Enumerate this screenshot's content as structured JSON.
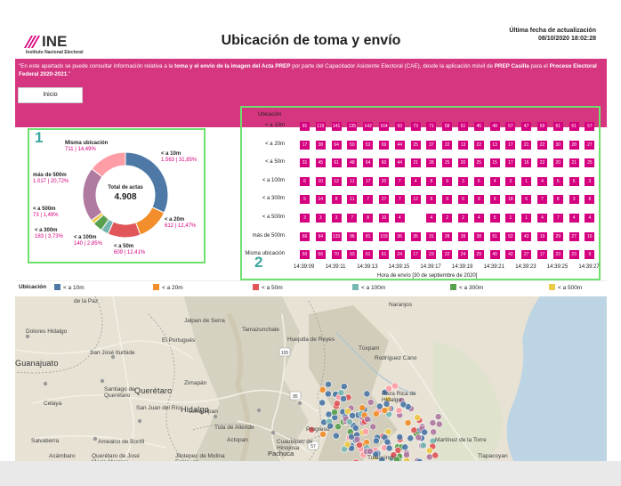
{
  "header": {
    "logo_text": "INE",
    "logo_sub": "Instituto Nacional Electoral",
    "title": "Ubicación de toma y envío",
    "update_label": "Última fecha de actualización",
    "update_value": "08/10/2020 18:02:28",
    "brand_color": "#d5007f"
  },
  "intro": {
    "p1": "\"En este apartado se puede consultar información relativa a la ",
    "b1": "toma y el envío de la imagen del Acta PREP",
    "p2": " por parte del Capacitador Asistente Electoral (CAE), desde la aplicación móvil de ",
    "b2": "PREP Casilla",
    "p3": " para el ",
    "b3": "Proceso Electoral Federal 2020-2021",
    "p4": ".\""
  },
  "nav": {
    "inicio": "Inicio"
  },
  "panel_numbers": {
    "one": "1",
    "two": "2"
  },
  "chart_data": [
    {
      "type": "pie",
      "center_title": "Total de actas",
      "center_value": "4.908",
      "slices": [
        {
          "name": "< a 10m",
          "value": 1563,
          "pct": "31,85%",
          "label": "1.563 | 31,85%",
          "color": "#4e79a7"
        },
        {
          "name": "< a 20m",
          "value": 612,
          "pct": "12,47%",
          "label": "612 | 12,47%",
          "color": "#f28e2b"
        },
        {
          "name": "< a 50m",
          "value": 609,
          "pct": "12,41%",
          "label": "609 | 12,41%",
          "color": "#e15759"
        },
        {
          "name": "< a 100m",
          "value": 140,
          "pct": "2,85%",
          "label": "140 | 2,85%",
          "color": "#76b7b2"
        },
        {
          "name": "< a 300m",
          "value": 183,
          "pct": "3,73%",
          "label": "183 | 3,73%",
          "color": "#59a14f"
        },
        {
          "name": "< a 500m",
          "value": 73,
          "pct": "1,49%",
          "label": "73 | 1,49%",
          "color": "#edc948"
        },
        {
          "name": "más de 500m",
          "value": 1017,
          "pct": "20,72%",
          "label": "1.017 | 20,72%",
          "color": "#b07aa1"
        },
        {
          "name": "Misma ubicación",
          "value": 711,
          "pct": "14,49%",
          "label": "711 | 14,49%",
          "color": "#ff9da7"
        }
      ]
    },
    {
      "type": "heatmap",
      "title": "Ubicación",
      "xlabel": "Hora de envío [30 de septiembre de 2020]",
      "x_ticks": [
        "14:39:09",
        "14:39:11",
        "14:39:13",
        "14:39:15",
        "14:39:17",
        "14:39:19",
        "14:39:21",
        "14:39:23",
        "14:39:25",
        "14:39:27"
      ],
      "rows": [
        {
          "name": "< a 10m",
          "values": [
            91,
            119,
            141,
            135,
            142,
            164,
            93,
            73,
            71,
            58,
            51,
            45,
            48,
            57,
            47,
            59,
            61,
            61,
            57
          ]
        },
        {
          "name": "< a 20m",
          "values": [
            17,
            38,
            64,
            50,
            53,
            69,
            44,
            25,
            37,
            22,
            13,
            22,
            13,
            17,
            21,
            22,
            30,
            28,
            27
          ]
        },
        {
          "name": "< a 50m",
          "values": [
            31,
            45,
            61,
            48,
            64,
            60,
            44,
            21,
            28,
            25,
            20,
            25,
            15,
            17,
            16,
            22,
            20,
            21,
            25
          ]
        },
        {
          "name": "< a 100m",
          "values": [
            6,
            10,
            12,
            11,
            17,
            20,
            7,
            4,
            8,
            9,
            3,
            6,
            4,
            3,
            1,
            4,
            6,
            6,
            3
          ]
        },
        {
          "name": "< a 300m",
          "values": [
            5,
            14,
            8,
            11,
            7,
            27,
            7,
            12,
            9,
            9,
            6,
            9,
            9,
            18,
            6,
            7,
            8,
            3,
            8
          ]
        },
        {
          "name": "< a 500m",
          "values": [
            3,
            3,
            3,
            7,
            8,
            10,
            4,
            null,
            4,
            2,
            2,
            4,
            5,
            1,
            1,
            4,
            7,
            4,
            4
          ]
        },
        {
          "name": "más de 500m",
          "values": [
            66,
            94,
            133,
            96,
            81,
            103,
            36,
            35,
            31,
            28,
            39,
            38,
            51,
            52,
            43,
            19,
            29,
            27,
            16
          ]
        },
        {
          "name": "Misma ubicación",
          "values": [
            50,
            56,
            70,
            93,
            61,
            61,
            24,
            17,
            23,
            22,
            24,
            29,
            40,
            42,
            27,
            17,
            23,
            23,
            9
          ]
        }
      ],
      "cell_color": "#d5007f"
    }
  ],
  "legend": {
    "title": "Ubicación",
    "items": [
      {
        "label": "< a 10m",
        "color": "#4e79a7"
      },
      {
        "label": "< a 20m",
        "color": "#f28e2b"
      },
      {
        "label": "< a 50m",
        "color": "#e15759"
      },
      {
        "label": "< a 100m",
        "color": "#76b7b2"
      },
      {
        "label": "< a 300m",
        "color": "#59a14f"
      },
      {
        "label": "< a 500m",
        "color": "#edc948"
      }
    ]
  },
  "map": {
    "labels": [
      {
        "text": "de la Paz",
        "cls": ""
      },
      {
        "text": "Dolores Hidalgo",
        "cls": ""
      },
      {
        "text": "Guanajuato",
        "cls": "big"
      },
      {
        "text": "San José Iturbide",
        "cls": ""
      },
      {
        "text": "Jalpan de Serra",
        "cls": ""
      },
      {
        "text": "El Portugués",
        "cls": ""
      },
      {
        "text": "Tamazunchale",
        "cls": ""
      },
      {
        "text": "Huejutla de Reyes",
        "cls": ""
      },
      {
        "text": "Naranjos",
        "cls": ""
      },
      {
        "text": "Túxpam",
        "cls": ""
      },
      {
        "text": "Rodríguez Cano",
        "cls": ""
      },
      {
        "text": "Querétaro",
        "cls": "big"
      },
      {
        "text": "Zimapán",
        "cls": ""
      },
      {
        "text": "Santiago de Querétaro",
        "cls": ""
      },
      {
        "text": "Celaya",
        "cls": ""
      },
      {
        "text": "San Juan del Río",
        "cls": ""
      },
      {
        "text": "Hidalgo",
        "cls": "big"
      },
      {
        "text": "Poza Rica de Hidalgo",
        "cls": ""
      },
      {
        "text": "Ixmiquilpan",
        "cls": ""
      },
      {
        "text": "Tula de Allende",
        "cls": ""
      },
      {
        "text": "Actopan",
        "cls": ""
      },
      {
        "text": "Progreso",
        "cls": ""
      },
      {
        "text": "Salvatierra",
        "cls": ""
      },
      {
        "text": "Amealco de Bonfil",
        "cls": ""
      },
      {
        "text": "Pachuca",
        "cls": "med"
      },
      {
        "text": "Cuautepec de Hinojosa",
        "cls": ""
      },
      {
        "text": "Martínez de la Torre",
        "cls": ""
      },
      {
        "text": "Acámbaro",
        "cls": ""
      },
      {
        "text": "Jilotepec de Molina Enríquez",
        "cls": ""
      },
      {
        "text": "Tulancingo",
        "cls": ""
      },
      {
        "text": "Tlapacoyan",
        "cls": ""
      },
      {
        "text": "Querétaro de José María Morelos",
        "cls": ""
      }
    ],
    "shields": [
      "105",
      "85",
      "57"
    ]
  }
}
